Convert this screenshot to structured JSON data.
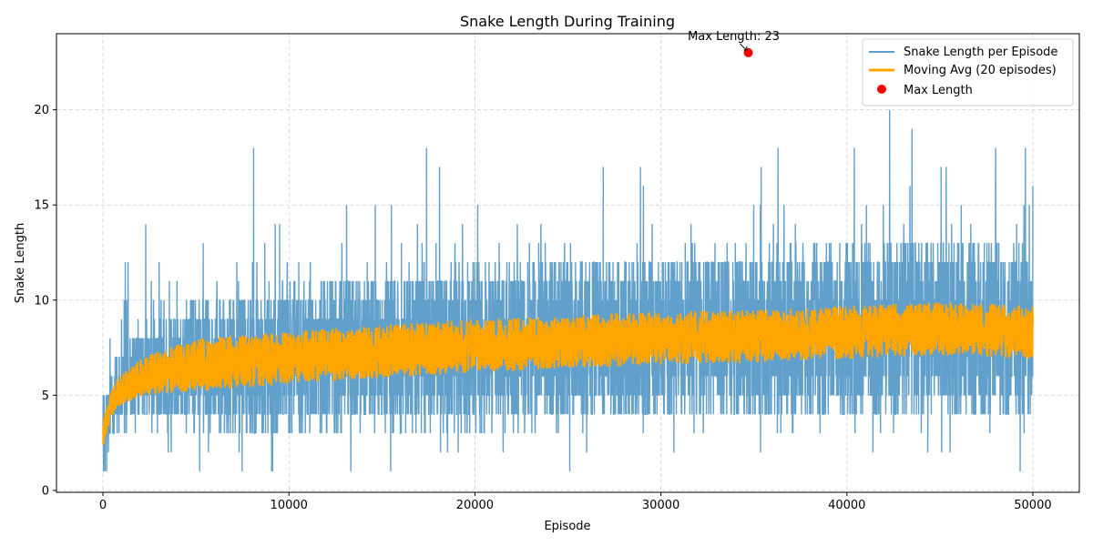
{
  "chart_data": {
    "type": "line",
    "title": "Snake Length During Training",
    "xlabel": "Episode",
    "ylabel": "Snake Length",
    "xlim": [
      -2500,
      52500
    ],
    "ylim": [
      -0.1,
      24
    ],
    "xticks": [
      0,
      10000,
      20000,
      30000,
      40000,
      50000
    ],
    "yticks": [
      0,
      5,
      10,
      15,
      20
    ],
    "grid": true,
    "legend_position": "top-right",
    "episodes": 50000,
    "series": [
      {
        "name": "Snake Length per Episode",
        "color": "#5a9bc9",
        "summary_points": [
          {
            "x": 0,
            "y": 3
          },
          {
            "x": 200,
            "y": 1
          },
          {
            "x": 1000,
            "y": 9
          },
          {
            "x": 2300,
            "y": 14
          },
          {
            "x": 5200,
            "y": 1
          },
          {
            "x": 8100,
            "y": 18
          },
          {
            "x": 17400,
            "y": 18
          },
          {
            "x": 18100,
            "y": 17
          },
          {
            "x": 25100,
            "y": 1
          },
          {
            "x": 26900,
            "y": 17
          },
          {
            "x": 30700,
            "y": 2
          },
          {
            "x": 36300,
            "y": 18
          },
          {
            "x": 40400,
            "y": 18
          },
          {
            "x": 41400,
            "y": 2
          },
          {
            "x": 42300,
            "y": 20
          },
          {
            "x": 43500,
            "y": 19
          },
          {
            "x": 45100,
            "y": 2
          },
          {
            "x": 48000,
            "y": 18
          },
          {
            "x": 49600,
            "y": 18
          },
          {
            "x": 50000,
            "y": 16
          }
        ]
      },
      {
        "name": "Moving Avg (20 episodes)",
        "color": "#ffa500",
        "trend_points": [
          {
            "x": 0,
            "y": 3.0
          },
          {
            "x": 500,
            "y": 4.7
          },
          {
            "x": 1000,
            "y": 5.3
          },
          {
            "x": 2000,
            "y": 5.9
          },
          {
            "x": 3000,
            "y": 6.2
          },
          {
            "x": 5000,
            "y": 6.6
          },
          {
            "x": 8000,
            "y": 6.8
          },
          {
            "x": 10000,
            "y": 7.0
          },
          {
            "x": 15000,
            "y": 7.3
          },
          {
            "x": 20000,
            "y": 7.6
          },
          {
            "x": 25000,
            "y": 7.8
          },
          {
            "x": 30000,
            "y": 8.0
          },
          {
            "x": 35000,
            "y": 8.1
          },
          {
            "x": 40000,
            "y": 8.3
          },
          {
            "x": 45000,
            "y": 8.5
          },
          {
            "x": 50000,
            "y": 8.3
          }
        ]
      }
    ],
    "max_point": {
      "name": "Max Length",
      "x": 34700,
      "y": 23,
      "color": "#ff0000",
      "annotation": "Max Length: 23"
    }
  }
}
